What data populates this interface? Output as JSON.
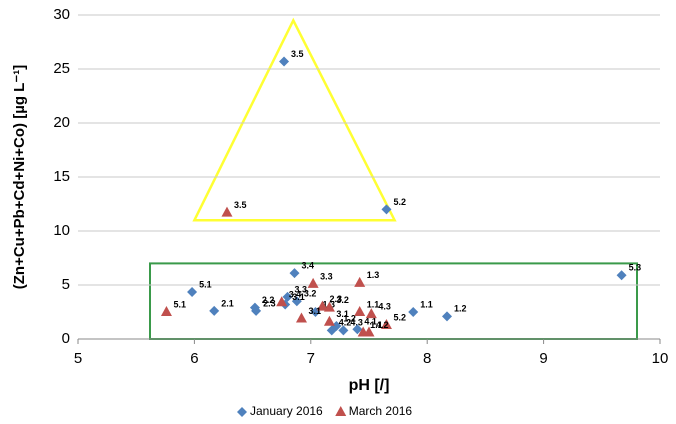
{
  "chart_data": {
    "type": "scatter",
    "x_label": "pH [/]",
    "y_label": "(Zn+Cu+Pb+Cd+Ni+Co) [µg L⁻¹]",
    "xlim": [
      5,
      10
    ],
    "xticks": [
      5,
      6,
      7,
      8,
      9,
      10
    ],
    "ylim": [
      0,
      30
    ],
    "yticks": [
      0,
      5,
      10,
      15,
      20,
      25,
      30
    ],
    "grid": true,
    "legend": "bottom",
    "series": [
      {
        "name": "January 2016",
        "color": "#4f81bd",
        "marker": "diamond",
        "x": [
          5.98,
          6.17,
          6.52,
          6.53,
          6.77,
          6.86,
          6.8,
          6.88,
          6.78,
          7.04,
          7.22,
          7.18,
          7.28,
          7.4,
          7.65,
          7.88,
          8.17,
          9.67
        ],
        "values": [
          4.35,
          2.6,
          2.9,
          2.6,
          25.7,
          6.1,
          3.9,
          3.5,
          3.2,
          2.5,
          1.2,
          0.8,
          0.8,
          0.9,
          12.0,
          2.5,
          2.1,
          5.9
        ],
        "point_labels": [
          "5.1",
          "2.1",
          "2.2",
          "2.3",
          "3.5",
          "3.4",
          "3.3",
          "3.2",
          "3.1",
          "1.3",
          "1.2",
          "4.2",
          "4.3",
          "4.1",
          "5.2",
          "1.1",
          "1.2",
          "5.3"
        ]
      },
      {
        "name": "March 2016",
        "color": "#c0504d",
        "marker": "triangle",
        "x": [
          5.76,
          6.28,
          6.75,
          7.02,
          7.42,
          7.1,
          7.16,
          6.92,
          7.16,
          7.42,
          7.52,
          7.65,
          7.45,
          7.5
        ],
        "values": [
          2.5,
          11.7,
          3.4,
          5.1,
          5.2,
          3.0,
          2.9,
          1.9,
          1.6,
          2.5,
          2.3,
          1.3,
          0.6,
          0.6
        ],
        "point_labels": [
          "5.1",
          "3.5",
          "3.4",
          "3.3",
          "1.3",
          "2.3",
          "3.2",
          "3.1",
          "3.1",
          "1.1",
          "4.3",
          "5.2",
          "1.1",
          "4.2"
        ]
      }
    ]
  }
}
